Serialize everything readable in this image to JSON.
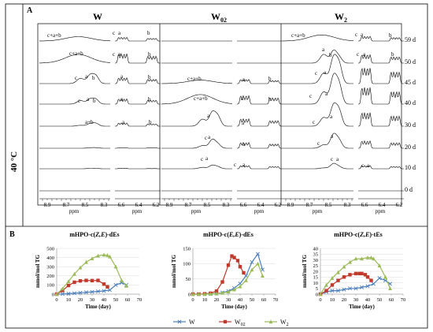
{
  "figure": {
    "panel_a_label": "A",
    "panel_b_label": "B",
    "temperature_label": "40 °C"
  },
  "nmr": {
    "columns": [
      {
        "title_main": "W",
        "title_sub": ""
      },
      {
        "title_main": "W",
        "title_sub": "02"
      },
      {
        "title_main": "W",
        "title_sub": "2"
      }
    ],
    "days": [
      "59 d",
      "50 d",
      "45 d",
      "40 d",
      "30 d",
      "20 d",
      "10 d",
      "0 d"
    ],
    "left_axis_ticks": [
      "8.9",
      "8.7",
      "8.5",
      "8.3"
    ],
    "right_axis_ticks": [
      "6.6",
      "6.4",
      "6.2"
    ],
    "axis_unit": "ppm",
    "peak_labels": {
      "cab": "c+a+b",
      "ab": "a+b",
      "a": "a",
      "b": "b",
      "c": "c"
    }
  },
  "chart_data": [
    {
      "type": "line",
      "title_main": "mHPO-c(",
      "title_italic": "Z,E",
      "title_end": ")-dEs",
      "xlabel": "Time (day)",
      "ylabel": "mmol/mol TG",
      "xlim": [
        0,
        70
      ],
      "ylim": [
        0,
        500
      ],
      "xticks": [
        0,
        10,
        20,
        30,
        40,
        50,
        60,
        70
      ],
      "yticks": [
        0,
        100,
        200,
        300,
        400,
        500
      ],
      "series": [
        {
          "key": "W",
          "color": "#4a7ebb",
          "marker": "x",
          "x": [
            0,
            5,
            10,
            15,
            20,
            25,
            30,
            35,
            40,
            45,
            50,
            55,
            59
          ],
          "y": [
            0,
            2,
            5,
            10,
            15,
            20,
            25,
            30,
            35,
            45,
            100,
            125,
            100
          ]
        },
        {
          "key": "W02",
          "color": "#c0392b",
          "marker": "square",
          "x": [
            0,
            5,
            10,
            15,
            20,
            25,
            30,
            35,
            40,
            43
          ],
          "y": [
            0,
            40,
            95,
            130,
            145,
            150,
            148,
            150,
            110,
            80
          ]
        },
        {
          "key": "W2",
          "color": "#9bbb59",
          "marker": "triangle",
          "x": [
            0,
            5,
            10,
            15,
            20,
            25,
            30,
            35,
            40,
            43,
            45,
            50,
            55,
            59
          ],
          "y": [
            0,
            60,
            140,
            220,
            290,
            350,
            390,
            420,
            430,
            425,
            410,
            300,
            150,
            90
          ]
        }
      ]
    },
    {
      "type": "line",
      "title_main": "mHPO-c(",
      "title_italic": "E,E",
      "title_end": ")-dEs",
      "xlabel": "Time (day)",
      "ylabel": "mmol/mol TG",
      "xlim": [
        0,
        70
      ],
      "ylim": [
        0,
        150
      ],
      "xticks": [
        0,
        10,
        20,
        30,
        40,
        50,
        60,
        70
      ],
      "yticks": [
        0,
        50,
        100,
        150
      ],
      "series": [
        {
          "key": "W",
          "color": "#4a7ebb",
          "marker": "x",
          "x": [
            0,
            5,
            10,
            15,
            20,
            25,
            30,
            35,
            40,
            45,
            50,
            55,
            59
          ],
          "y": [
            0,
            0,
            0,
            1,
            2,
            5,
            10,
            20,
            35,
            60,
            105,
            132,
            80
          ]
        },
        {
          "key": "W02",
          "color": "#c0392b",
          "marker": "square",
          "x": [
            0,
            5,
            10,
            15,
            20,
            25,
            30,
            33,
            35,
            38,
            40,
            43
          ],
          "y": [
            0,
            0,
            1,
            3,
            10,
            40,
            95,
            125,
            120,
            110,
            90,
            70
          ]
        },
        {
          "key": "W2",
          "color": "#9bbb59",
          "marker": "triangle",
          "x": [
            0,
            5,
            10,
            15,
            20,
            25,
            30,
            35,
            40,
            45,
            50,
            55,
            59
          ],
          "y": [
            0,
            0,
            0,
            1,
            2,
            4,
            8,
            15,
            25,
            45,
            80,
            100,
            60
          ]
        }
      ]
    },
    {
      "type": "line",
      "title_main": "mHPO-c(",
      "title_italic": "Z,E",
      "title_end": ")-tEs",
      "xlabel": "Time (day)",
      "ylabel": "mmol/mol TG",
      "xlim": [
        0,
        70
      ],
      "ylim": [
        0,
        40
      ],
      "xticks": [
        0,
        10,
        20,
        30,
        40,
        50,
        60,
        70
      ],
      "yticks": [
        0,
        5,
        10,
        15,
        20,
        25,
        30,
        35,
        40
      ],
      "series": [
        {
          "key": "W",
          "color": "#4a7ebb",
          "marker": "x",
          "x": [
            0,
            5,
            10,
            15,
            20,
            25,
            30,
            35,
            40,
            45,
            50,
            55,
            59
          ],
          "y": [
            0,
            2,
            3,
            3,
            4,
            5,
            5,
            6,
            7,
            9,
            14,
            12,
            9
          ]
        },
        {
          "key": "W02",
          "color": "#c0392b",
          "marker": "square",
          "x": [
            0,
            5,
            10,
            15,
            20,
            25,
            30,
            33,
            35,
            38,
            40,
            43
          ],
          "y": [
            0,
            3,
            8,
            12,
            15,
            17,
            18,
            18,
            18,
            17,
            15,
            12
          ]
        },
        {
          "key": "W2",
          "color": "#9bbb59",
          "marker": "triangle",
          "x": [
            0,
            5,
            10,
            15,
            20,
            25,
            30,
            35,
            40,
            43,
            45,
            50,
            55,
            59
          ],
          "y": [
            0,
            8,
            14,
            19,
            24,
            28,
            31,
            31,
            32,
            32,
            31,
            25,
            15,
            5
          ]
        }
      ]
    }
  ],
  "legend": {
    "items": [
      {
        "key": "W",
        "main": "W",
        "sub": ""
      },
      {
        "key": "W02",
        "main": "W",
        "sub": "02"
      },
      {
        "key": "W2",
        "main": "W",
        "sub": "2"
      }
    ]
  }
}
